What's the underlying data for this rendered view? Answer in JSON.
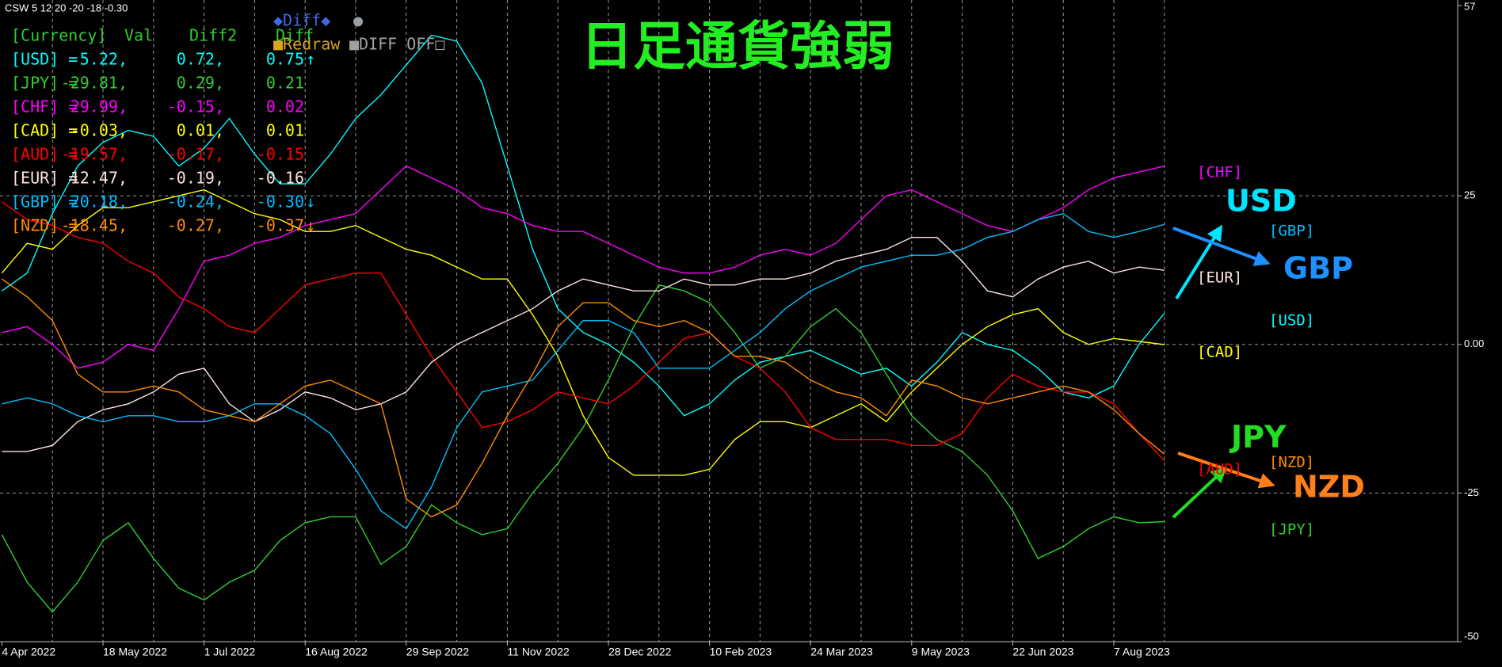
{
  "chart_data": {
    "type": "line",
    "title": "日足通貨強弱",
    "header_text": "CSW 5 12 20 -20 -18 -0.30",
    "panel": {
      "header": [
        "[Currency]",
        "Val",
        "Diff2",
        "Diff"
      ],
      "rows": [
        {
          "label": "[USD] =",
          "val": "5.22,",
          "diff2": "0.72,",
          "diff": "0.75",
          "arrow": "↑",
          "color": "#00ffff"
        },
        {
          "label": "[JPY] =",
          "val": "-29.81,",
          "diff2": "0.29,",
          "diff": "0.21",
          "color": "#32cd32"
        },
        {
          "label": "[CHF] =",
          "val": "29.99,",
          "diff2": "-0.15,",
          "diff": "0.02",
          "color": "#ff00ff"
        },
        {
          "label": "[CAD] =",
          "val": "-0.03,",
          "diff2": "0.01,",
          "diff": "0.01",
          "color": "#ffff00"
        },
        {
          "label": "[AUD] =",
          "val": "-19.57,",
          "diff2": "-0.17,",
          "diff": "-0.15",
          "color": "#ff0000"
        },
        {
          "label": "[EUR] =",
          "val": "12.47,",
          "diff2": "-0.19,",
          "diff": "-0.16",
          "color": "#ffe4e1"
        },
        {
          "label": "[GBP] =",
          "val": "20.18,",
          "diff2": "-0.24,",
          "diff": "-0.30",
          "arrow": "↓",
          "color": "#00bfff"
        },
        {
          "label": "[NZD] =",
          "val": "-18.45,",
          "diff2": "-0.27,",
          "diff": "-0.37",
          "arrow": "↓",
          "color": "#ff8c00"
        }
      ]
    },
    "buttons": [
      "◆Diff◆",
      "●",
      "■Redraw",
      "■DIFF OFF□"
    ],
    "categories": [
      "4 Apr 2022",
      null,
      null,
      null,
      "18 May 2022",
      null,
      null,
      null,
      "1 Jul 2022",
      null,
      null,
      null,
      "16 Aug 2022",
      null,
      null,
      null,
      "29 Sep 2022",
      null,
      null,
      null,
      "11 Nov 2022",
      null,
      null,
      null,
      "28 Dec 2022",
      null,
      null,
      null,
      "10 Feb 2023",
      null,
      null,
      null,
      "24 Mar 2023",
      null,
      null,
      null,
      "9 May 2023",
      null,
      null,
      null,
      "22 Jun 2023",
      null,
      null,
      null,
      "7 Aug 2023",
      null,
      null
    ],
    "ylim": [
      -50,
      57
    ],
    "yticks": [
      -50,
      -25,
      {
        "value": 0,
        "label": "0.00"
      },
      25,
      57
    ],
    "grid": true,
    "series": [
      {
        "name": "USD",
        "color": "#00ffff",
        "values": [
          9,
          12,
          22,
          30,
          34,
          36,
          35,
          30,
          33,
          38,
          32,
          27,
          27,
          32,
          38,
          42,
          47,
          52,
          51,
          44,
          30,
          16,
          6,
          2,
          0,
          -3,
          -7,
          -12,
          -10,
          -6,
          -3,
          -2,
          -1,
          -3,
          -5,
          -4,
          -7,
          -3,
          2,
          0,
          -1,
          -4,
          -8,
          -9,
          -7,
          0,
          5.22
        ]
      },
      {
        "name": "JPY",
        "color": "#32cd32",
        "values": [
          -32,
          -40,
          -45,
          -40,
          -33,
          -30,
          -36,
          -41,
          -43,
          -40,
          -38,
          -33,
          -30,
          -29,
          -29,
          -37,
          -34,
          -27,
          -30,
          -32,
          -31,
          -25,
          -20,
          -14,
          -6,
          3,
          10,
          9,
          7,
          2,
          -4,
          -2,
          3,
          6,
          2,
          -5,
          -12,
          -16,
          -18,
          -22,
          -28,
          -36,
          -34,
          -31,
          -29,
          -30,
          -29.81
        ]
      },
      {
        "name": "CHF",
        "color": "#ff00ff",
        "values": [
          2,
          3,
          0,
          -4,
          -3,
          0,
          -1,
          6,
          14,
          15,
          17,
          18,
          20,
          21,
          22,
          26,
          30,
          28,
          26,
          23,
          22,
          20,
          19,
          19,
          17,
          15,
          13,
          12,
          12,
          13,
          15,
          16,
          15,
          17,
          21,
          25,
          26,
          24,
          22,
          20,
          19,
          21,
          23,
          26,
          28,
          29,
          29.99
        ]
      },
      {
        "name": "CAD",
        "color": "#ffff00",
        "values": [
          12,
          17,
          16,
          20,
          23,
          23,
          24,
          25,
          26,
          24,
          22,
          21,
          19,
          19,
          20,
          18,
          16,
          15,
          13,
          11,
          11,
          5,
          -2,
          -12,
          -19,
          -22,
          -22,
          -22,
          -21,
          -16,
          -13,
          -13,
          -14,
          -12,
          -10,
          -13,
          -8,
          -4,
          0,
          3,
          5,
          6,
          2,
          0,
          1,
          0.5,
          -0.03
        ]
      },
      {
        "name": "AUD",
        "color": "#ff0000",
        "values": [
          24,
          21,
          20,
          18,
          17,
          14,
          12,
          8,
          6,
          3,
          2,
          6,
          10,
          11,
          12,
          12,
          5,
          -2,
          -8,
          -14,
          -13,
          -11,
          -8,
          -9,
          -10,
          -7,
          -3,
          1,
          2,
          -2,
          -4,
          -8,
          -14,
          -16,
          -16,
          -16,
          -17,
          -17,
          -15,
          -9,
          -5,
          -7,
          -8,
          -8,
          -10,
          -15,
          -19.57
        ]
      },
      {
        "name": "EUR",
        "color": "#ffe4e1",
        "values": [
          -18,
          -18,
          -17,
          -13,
          -11,
          -10,
          -8,
          -5,
          -4,
          -10,
          -13,
          -11,
          -8,
          -9,
          -11,
          -10,
          -8,
          -3,
          0,
          2,
          4,
          6,
          9,
          11,
          10,
          9,
          9,
          11,
          10,
          10,
          11,
          11,
          12,
          14,
          15,
          16,
          18,
          18,
          14,
          9,
          8,
          11,
          13,
          14,
          12,
          13,
          12.47
        ]
      },
      {
        "name": "GBP",
        "color": "#00bfff",
        "values": [
          -10,
          -9,
          -10,
          -12,
          -13,
          -12,
          -12,
          -13,
          -13,
          -12,
          -10,
          -10,
          -12,
          -15,
          -21,
          -28,
          -31,
          -24,
          -14,
          -8,
          -7,
          -6,
          -1,
          4,
          4,
          2,
          -4,
          -4,
          -4,
          -1,
          2,
          6,
          9,
          11,
          13,
          14,
          15,
          15,
          16,
          18,
          19,
          21,
          22,
          19,
          18,
          19,
          20.18
        ]
      },
      {
        "name": "NZD",
        "color": "#ff8c00",
        "values": [
          11,
          8,
          4,
          -5,
          -8,
          -8,
          -7,
          -8,
          -11,
          -12,
          -13,
          -10,
          -7,
          -6,
          -8,
          -10,
          -26,
          -29,
          -27,
          -20,
          -12,
          -5,
          3,
          7,
          7,
          4,
          3,
          4,
          2,
          -2,
          -2,
          -3,
          -6,
          -8,
          -9,
          -12,
          -6,
          -7,
          -9,
          -10,
          -9,
          -8,
          -7,
          -8,
          -11,
          -15,
          -18.45
        ]
      }
    ],
    "side_labels": [
      {
        "text": "[CHF]",
        "color": "#ff00ff"
      },
      {
        "text": "[GBP]",
        "color": "#00bfff"
      },
      {
        "text": "[EUR]",
        "color": "#ffe4e1"
      },
      {
        "text": "[USD]",
        "color": "#00ffff"
      },
      {
        "text": "[CAD]",
        "color": "#ffff00"
      },
      {
        "text": "[AUD]",
        "color": "#ff0000"
      },
      {
        "text": "[NZD]",
        "color": "#ff8c00"
      },
      {
        "text": "[JPY]",
        "color": "#32cd32"
      }
    ],
    "annotations": [
      {
        "text": "USD",
        "color": "#00e5ff"
      },
      {
        "text": "GBP",
        "color": "#1e90ff"
      },
      {
        "text": "JPY",
        "color": "#22dd22"
      },
      {
        "text": "NZD",
        "color": "#ff7f1a"
      }
    ]
  }
}
